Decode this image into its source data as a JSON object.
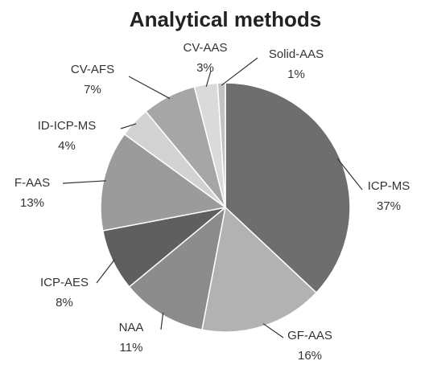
{
  "chart_data": {
    "type": "pie",
    "title": "Analytical methods",
    "categories": [
      "ICP-MS",
      "GF-AAS",
      "NAA",
      "ICP-AES",
      "F-AAS",
      "ID-ICP-MS",
      "CV-AFS",
      "CV-AAS",
      "Solid-AAS"
    ],
    "values": [
      37,
      16,
      11,
      8,
      13,
      4,
      7,
      3,
      1
    ],
    "value_labels": [
      "37%",
      "16%",
      "11%",
      "8%",
      "13%",
      "4%",
      "7%",
      "3%",
      "1%"
    ],
    "colors": [
      "#6e6e6e",
      "#b2b2b2",
      "#8c8c8c",
      "#5f5f5f",
      "#9b9b9b",
      "#d2d2d2",
      "#a6a6a6",
      "#dadada",
      "#c2c2c2"
    ]
  }
}
